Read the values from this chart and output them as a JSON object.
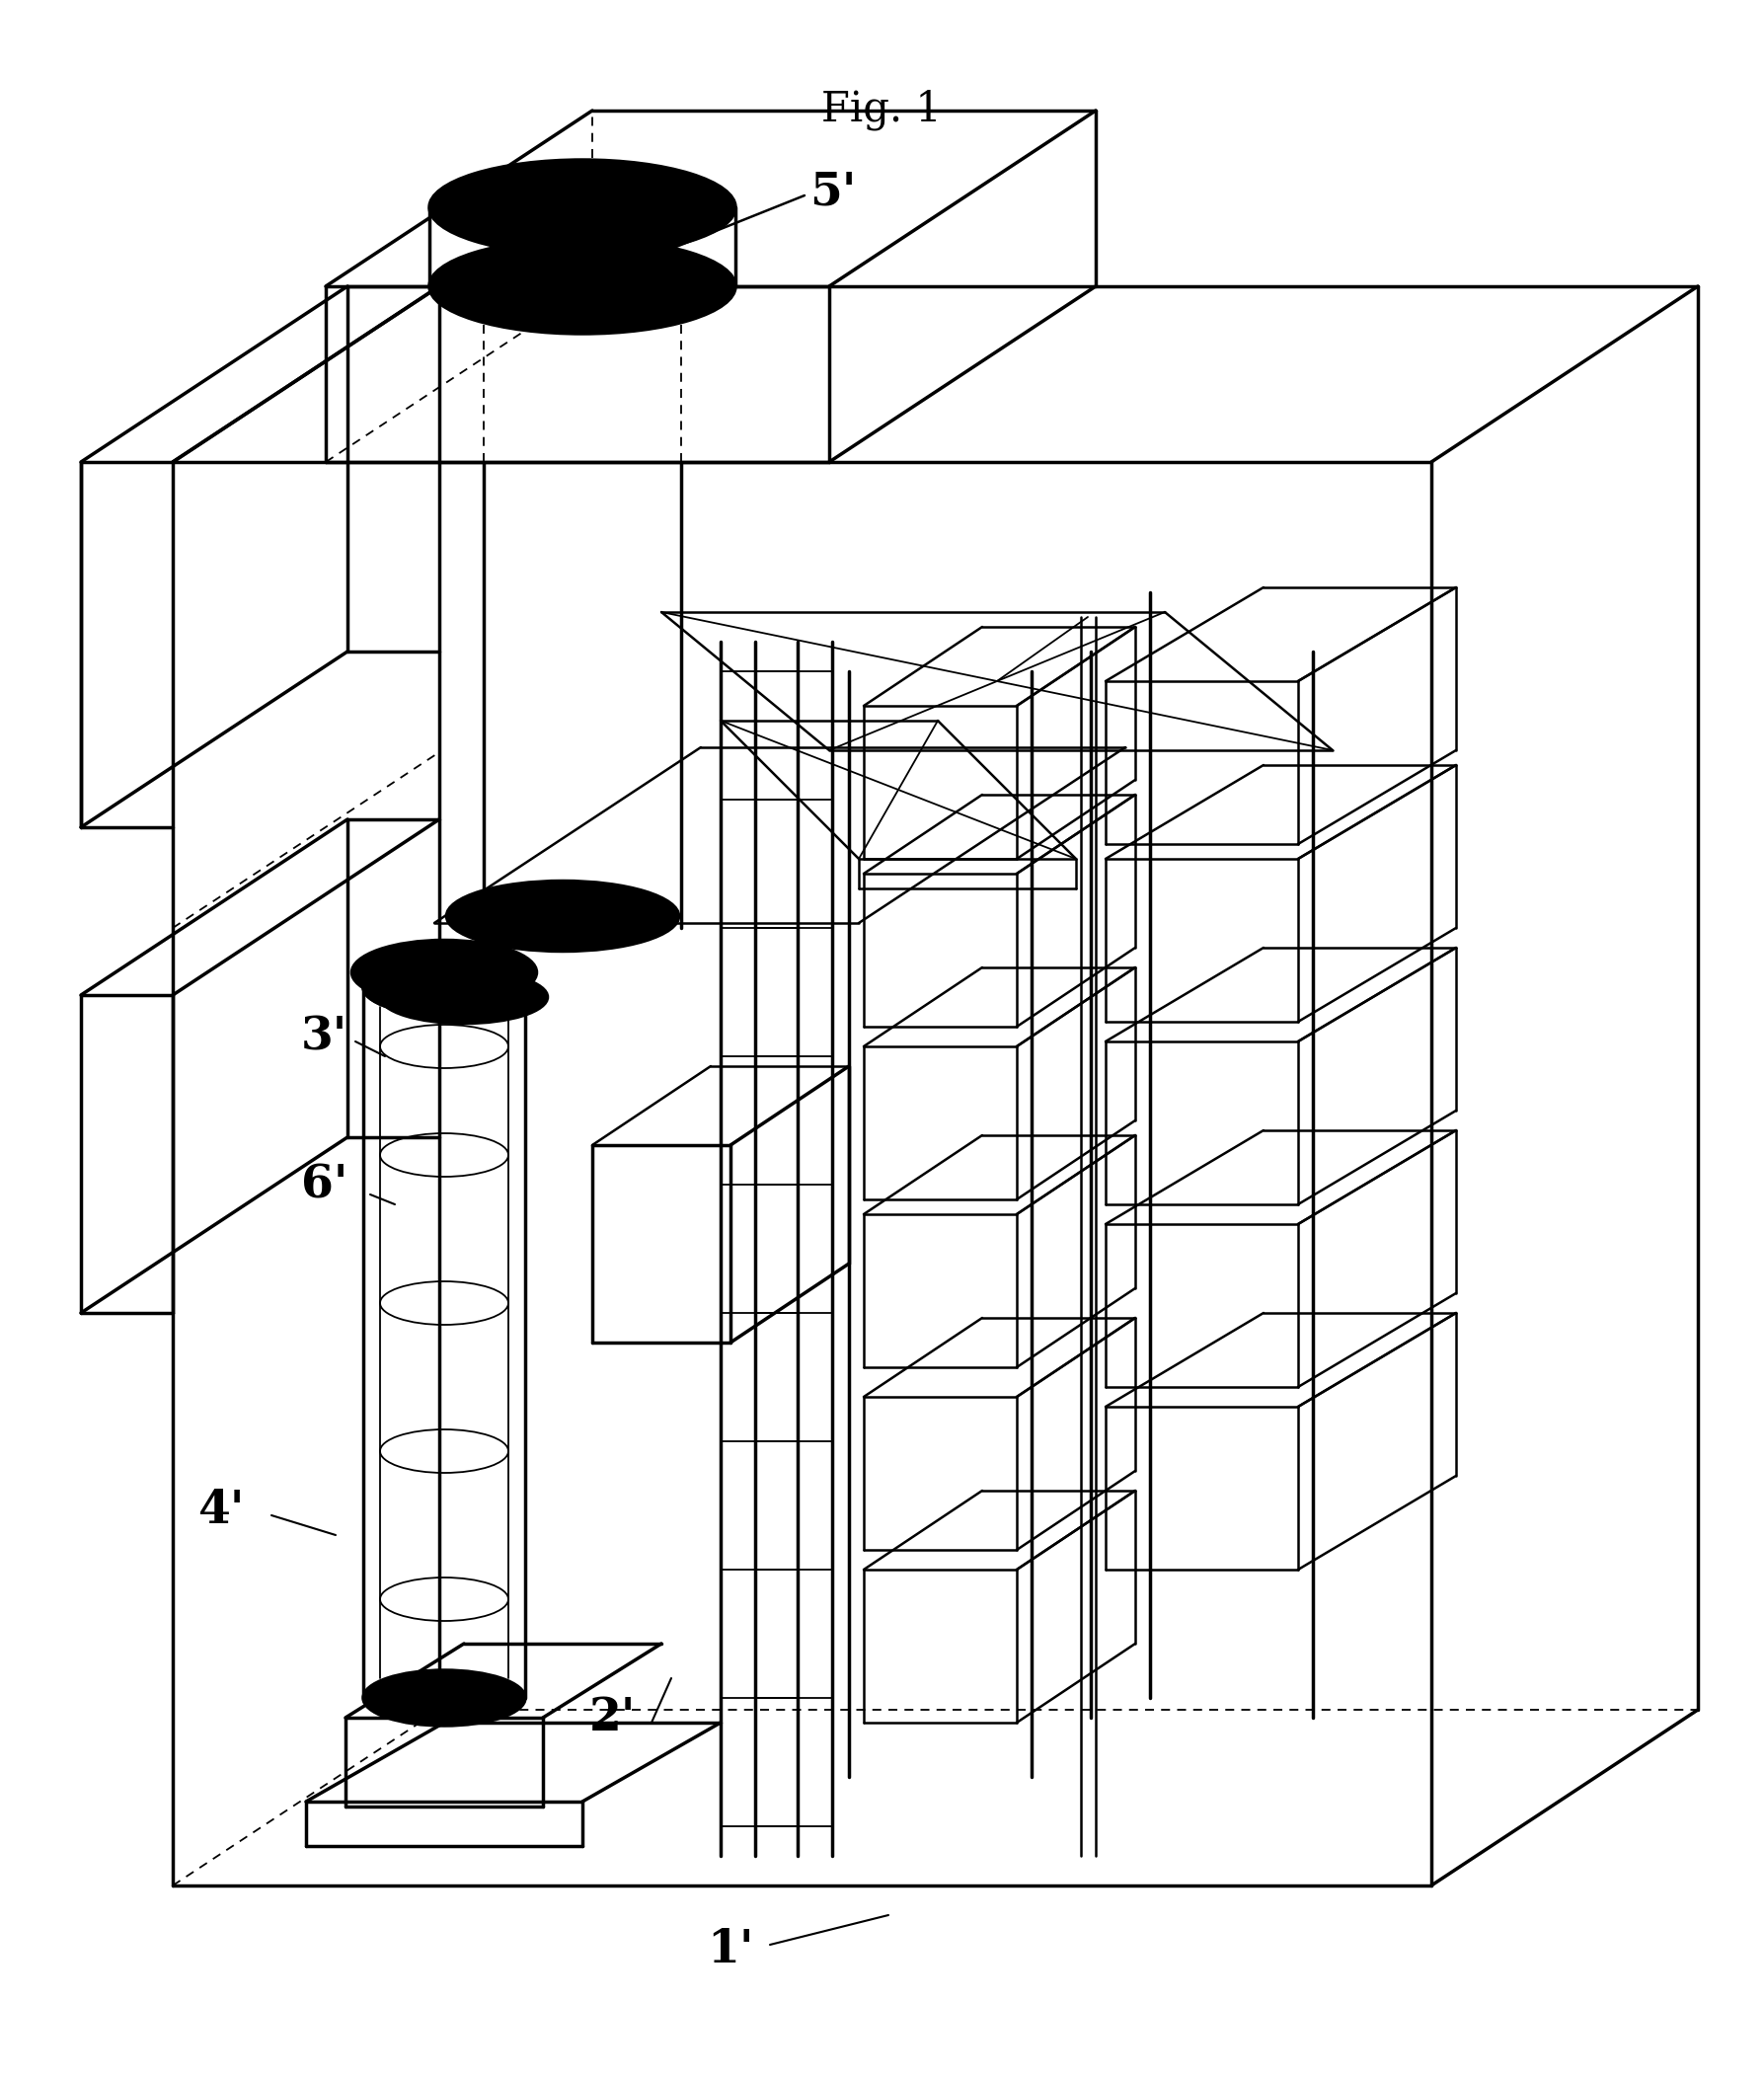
{
  "title": "Fig. 1",
  "background_color": "#ffffff",
  "line_color": "#000000",
  "labels": {
    "1prime": "1'",
    "2prime": "2'",
    "3prime": "3'",
    "4prime": "4'",
    "5prime": "5'",
    "6prime": "6'"
  },
  "label_fontsize": 34,
  "title_fontsize": 30
}
